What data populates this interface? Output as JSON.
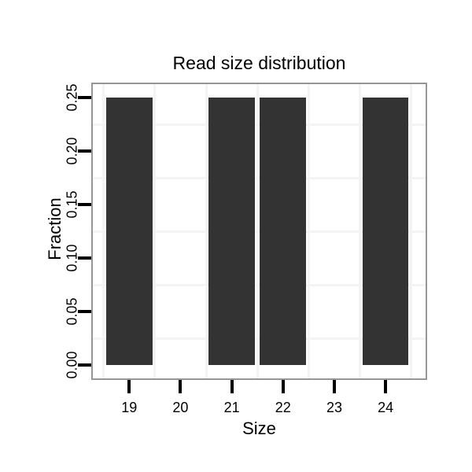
{
  "chart_data": {
    "type": "bar",
    "title": "Read size distribution",
    "xlabel": "Size",
    "ylabel": "Fraction",
    "x": [
      19,
      21,
      22,
      24
    ],
    "values": [
      0.25,
      0.25,
      0.25,
      0.25
    ],
    "bar_width": 0.9,
    "bar_color": "#333333",
    "x_tick_values": [
      19,
      20,
      21,
      22,
      23,
      24
    ],
    "x_tick_labels": [
      "19",
      "20",
      "21",
      "22",
      "23",
      "24"
    ],
    "y_tick_values": [
      0.0,
      0.05,
      0.1,
      0.15,
      0.2,
      0.25
    ],
    "y_tick_labels": [
      "0.00",
      "0.05",
      "0.10",
      "0.15",
      "0.20",
      "0.25"
    ],
    "xlim": [
      18.29,
      24.78
    ],
    "ylim": [
      -0.0125,
      0.2625
    ],
    "grid": {
      "minor_x": [
        18.5,
        19.5,
        20.5,
        21.5,
        22.5,
        23.5,
        24.5
      ],
      "minor_y": [
        0.025,
        0.075,
        0.125,
        0.175,
        0.225
      ],
      "color": "#f4f4f4"
    },
    "legend": "none",
    "panel_border_color": "#969696",
    "tick_color": "#000000",
    "background_color": "#ffffff"
  }
}
